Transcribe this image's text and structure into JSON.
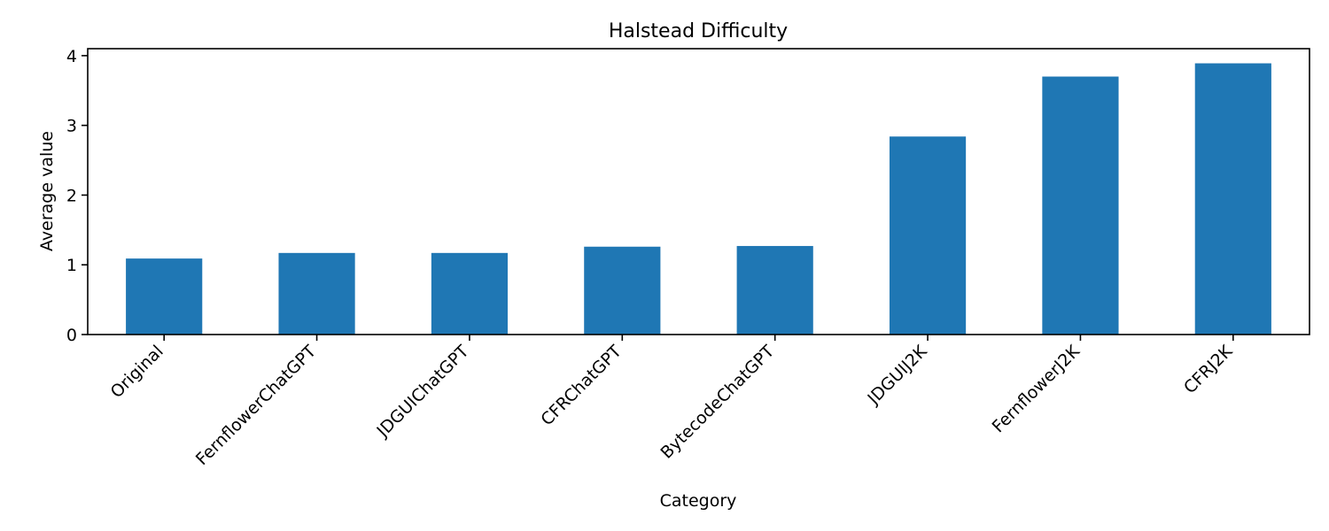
{
  "chart_data": {
    "type": "bar",
    "title": "Halstead Difficulty",
    "xlabel": "Category",
    "ylabel": "Average value",
    "categories": [
      "Original",
      "FernflowerChatGPT",
      "JDGUIChatGPT",
      "CFRChatGPT",
      "BytecodeChatGPT",
      "JDGUIJ2K",
      "FernflowerJ2K",
      "CFRJ2K"
    ],
    "values": [
      1.09,
      1.17,
      1.17,
      1.26,
      1.27,
      2.84,
      3.7,
      3.89
    ],
    "ylim": [
      0,
      4.1
    ],
    "yticks": [
      0,
      1,
      2,
      3,
      4
    ],
    "grid": false,
    "legend": "none",
    "bar_color": "#1f77b4"
  }
}
